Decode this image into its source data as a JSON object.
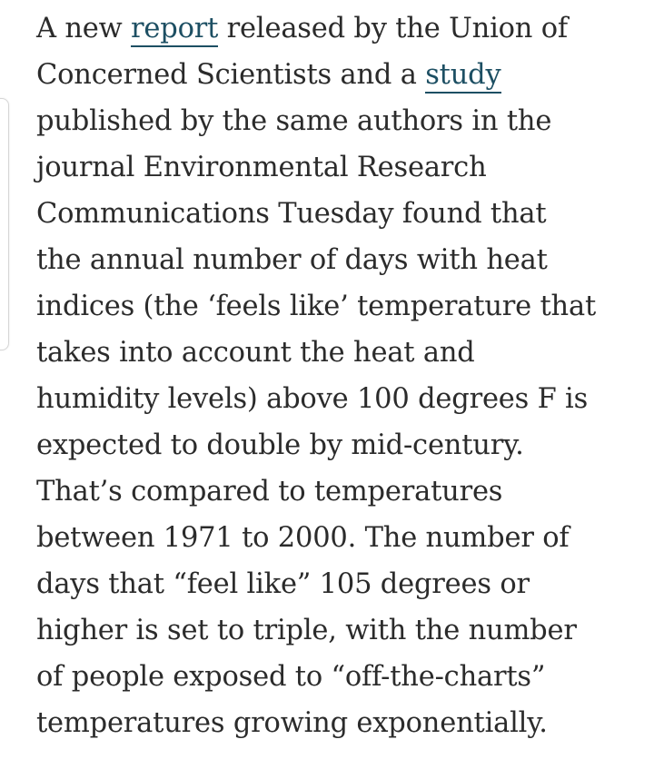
{
  "article": {
    "lines": [
      {
        "before": "A new ",
        "link": "report",
        "after": " released by the Union of"
      },
      {
        "before": "Concerned Scientists and a ",
        "link": "study",
        "after": ""
      },
      {
        "text": "published by the same authors in the"
      },
      {
        "text": "journal Environmental Research"
      },
      {
        "text": "Communications Tuesday found that"
      },
      {
        "text": "the annual number of days with heat"
      },
      {
        "text": "indices (the ‘feels like’ temperature that"
      },
      {
        "text": "takes into account the heat and"
      },
      {
        "text": "humidity levels) above 100 degrees F is"
      },
      {
        "text": "expected to double by mid-century."
      },
      {
        "text": "That’s compared to temperatures"
      },
      {
        "text": "between 1971 to 2000. The number of"
      },
      {
        "text": "days that “feel like” 105 degrees or"
      },
      {
        "text": "higher is set to triple, with the number"
      },
      {
        "text": "of people exposed to “off-the-charts”"
      },
      {
        "text": "temperatures growing exponentially."
      }
    ]
  },
  "colors": {
    "text": "#2b2b2b",
    "link": "#1d4f63",
    "background": "#ffffff"
  }
}
